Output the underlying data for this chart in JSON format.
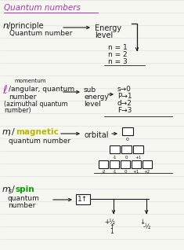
{
  "bg_color": "#f7f7f2",
  "line_color": "#d0d0d8",
  "text_color": "#1a1a1a",
  "title": "Quantum numbers",
  "title_color": "#b030b0",
  "ml_color": "#b8b800",
  "ms_color": "#00a000",
  "n_values": [
    "n = 1",
    "n = 2",
    "n = 3"
  ],
  "l_values": [
    "s→0",
    "P→1",
    "d→2",
    "F→3"
  ],
  "box1_labels": [
    "0"
  ],
  "box3_labels": [
    "-1",
    "0",
    "+1"
  ],
  "box5_labels": [
    "-2",
    "-1",
    "0",
    "+1",
    "+2"
  ]
}
